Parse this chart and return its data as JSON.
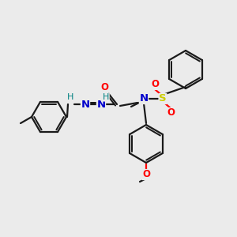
{
  "bg_color": "#ebebeb",
  "bond_color": "#1a1a1a",
  "atom_colors": {
    "N": "#0000cc",
    "O": "#ff0000",
    "S": "#cccc00",
    "H_label": "#008080",
    "C": "#1a1a1a"
  },
  "ring_r": 22,
  "lw": 1.6
}
